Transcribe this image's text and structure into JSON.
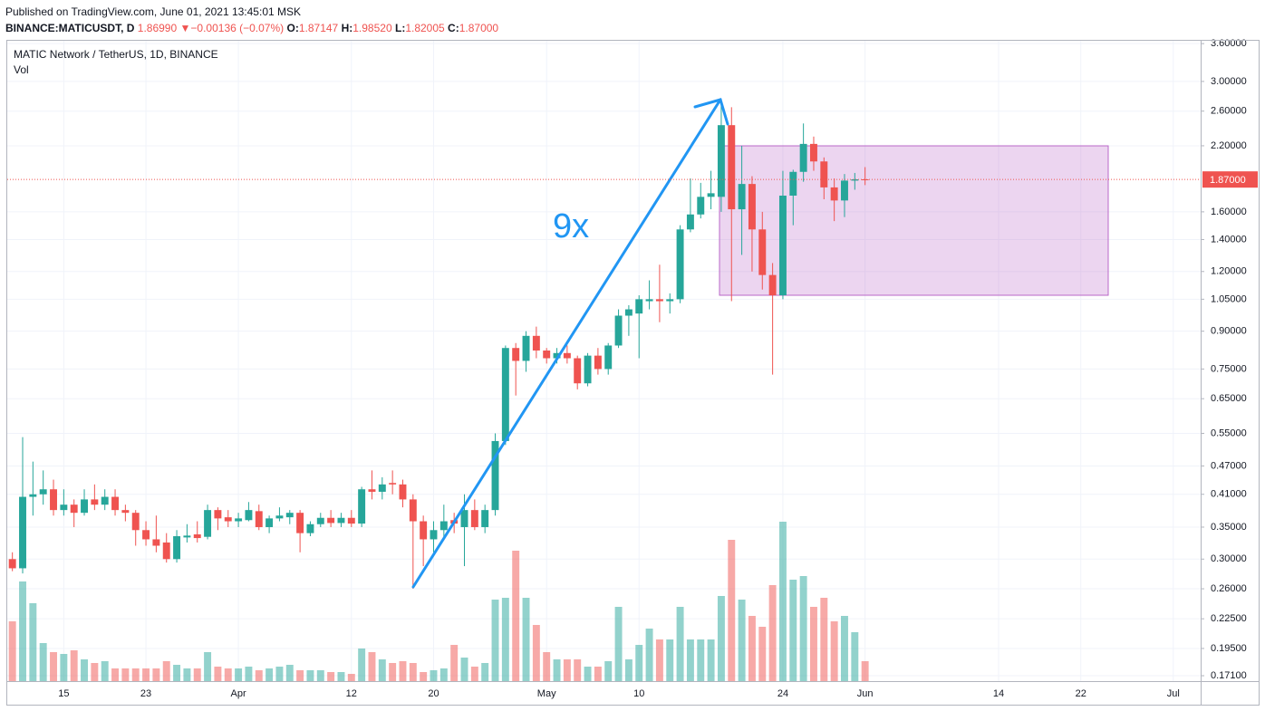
{
  "header": {
    "published": "Published on TradingView.com, June 01, 2021 13:45:01 MSK",
    "symbol": "BINANCE:MATICUSDT, D",
    "price": "1.86990",
    "arrow": "▼",
    "change": "−0.00136 (−0.07%)",
    "o_label": "O:",
    "o": "1.87147",
    "h_label": "H:",
    "h": "1.98520",
    "l_label": "L:",
    "l": "1.82005",
    "c_label": "C:",
    "c": "1.87000"
  },
  "chart_data": {
    "type": "candlestick",
    "title": "MATIC Network / TetherUS, 1D, BINANCE",
    "volume_label": "Vol",
    "annotation": "9x",
    "up_color": "#26a69a",
    "down_color": "#ef5350",
    "log_scale": true,
    "grid": true,
    "x": [
      "2021-03-10",
      "2021-03-11",
      "2021-03-12",
      "2021-03-13",
      "2021-03-14",
      "2021-03-15",
      "2021-03-16",
      "2021-03-17",
      "2021-03-18",
      "2021-03-19",
      "2021-03-20",
      "2021-03-21",
      "2021-03-22",
      "2021-03-23",
      "2021-03-24",
      "2021-03-25",
      "2021-03-26",
      "2021-03-27",
      "2021-03-28",
      "2021-03-29",
      "2021-03-30",
      "2021-03-31",
      "2021-04-01",
      "2021-04-02",
      "2021-04-03",
      "2021-04-04",
      "2021-04-05",
      "2021-04-06",
      "2021-04-07",
      "2021-04-08",
      "2021-04-09",
      "2021-04-10",
      "2021-04-11",
      "2021-04-12",
      "2021-04-13",
      "2021-04-14",
      "2021-04-15",
      "2021-04-16",
      "2021-04-17",
      "2021-04-18",
      "2021-04-19",
      "2021-04-20",
      "2021-04-21",
      "2021-04-22",
      "2021-04-23",
      "2021-04-24",
      "2021-04-25",
      "2021-04-26",
      "2021-04-27",
      "2021-04-28",
      "2021-04-29",
      "2021-04-30",
      "2021-05-01",
      "2021-05-02",
      "2021-05-03",
      "2021-05-04",
      "2021-05-05",
      "2021-05-06",
      "2021-05-07",
      "2021-05-08",
      "2021-05-09",
      "2021-05-10",
      "2021-05-11",
      "2021-05-12",
      "2021-05-13",
      "2021-05-14",
      "2021-05-15",
      "2021-05-16",
      "2021-05-17",
      "2021-05-18",
      "2021-05-19",
      "2021-05-20",
      "2021-05-21",
      "2021-05-22",
      "2021-05-23",
      "2021-05-24",
      "2021-05-25",
      "2021-05-26",
      "2021-05-27",
      "2021-05-28",
      "2021-05-29",
      "2021-05-30",
      "2021-05-31",
      "2021-06-01"
    ],
    "open": [
      0.3,
      0.287,
      0.405,
      0.41,
      0.42,
      0.38,
      0.39,
      0.375,
      0.4,
      0.39,
      0.405,
      0.38,
      0.375,
      0.345,
      0.33,
      0.325,
      0.3,
      0.333,
      0.338,
      0.334,
      0.38,
      0.367,
      0.36,
      0.362,
      0.378,
      0.35,
      0.365,
      0.367,
      0.375,
      0.34,
      0.355,
      0.366,
      0.357,
      0.366,
      0.356,
      0.42,
      0.415,
      0.433,
      0.43,
      0.4,
      0.36,
      0.33,
      0.345,
      0.362,
      0.35,
      0.38,
      0.35,
      0.38,
      0.53,
      0.83,
      0.78,
      0.88,
      0.82,
      0.79,
      0.81,
      0.79,
      0.7,
      0.8,
      0.75,
      0.84,
      0.97,
      0.98,
      1.04,
      1.05,
      1.04,
      1.05,
      1.47,
      1.58,
      1.72,
      1.72,
      2.43,
      1.62,
      1.83,
      1.47,
      1.18,
      1.07,
      1.73,
      1.94,
      2.22,
      2.04,
      1.8,
      1.69,
      1.86,
      1.87147
    ],
    "high": [
      0.31,
      0.54,
      0.48,
      0.46,
      0.44,
      0.42,
      0.4,
      0.42,
      0.43,
      0.42,
      0.42,
      0.39,
      0.38,
      0.36,
      0.37,
      0.34,
      0.345,
      0.355,
      0.36,
      0.39,
      0.385,
      0.38,
      0.375,
      0.395,
      0.39,
      0.37,
      0.385,
      0.38,
      0.38,
      0.36,
      0.375,
      0.38,
      0.375,
      0.38,
      0.425,
      0.46,
      0.445,
      0.46,
      0.44,
      0.41,
      0.37,
      0.36,
      0.39,
      0.375,
      0.41,
      0.4,
      0.39,
      0.55,
      0.84,
      0.85,
      0.9,
      0.92,
      0.83,
      0.83,
      0.84,
      0.8,
      0.81,
      0.83,
      0.85,
      1.0,
      1.02,
      1.07,
      1.15,
      1.24,
      1.08,
      1.5,
      1.88,
      1.84,
      1.95,
      2.7,
      2.65,
      2.2,
      1.9,
      1.6,
      1.25,
      1.95,
      1.96,
      2.45,
      2.3,
      2.08,
      1.88,
      1.92,
      1.93,
      1.9852
    ],
    "low": [
      0.283,
      0.28,
      0.37,
      0.39,
      0.37,
      0.37,
      0.35,
      0.37,
      0.38,
      0.38,
      0.37,
      0.36,
      0.32,
      0.32,
      0.31,
      0.295,
      0.295,
      0.325,
      0.325,
      0.33,
      0.345,
      0.35,
      0.35,
      0.36,
      0.345,
      0.34,
      0.36,
      0.355,
      0.31,
      0.335,
      0.35,
      0.35,
      0.35,
      0.35,
      0.35,
      0.4,
      0.4,
      0.41,
      0.385,
      0.26,
      0.29,
      0.31,
      0.33,
      0.34,
      0.29,
      0.345,
      0.34,
      0.37,
      0.52,
      0.66,
      0.74,
      0.79,
      0.77,
      0.77,
      0.77,
      0.68,
      0.69,
      0.73,
      0.73,
      0.83,
      0.88,
      0.79,
      1.0,
      0.94,
      0.98,
      1.03,
      1.45,
      1.55,
      1.62,
      1.6,
      1.04,
      1.3,
      1.2,
      1.1,
      0.73,
      1.05,
      1.5,
      1.85,
      1.95,
      1.7,
      1.53,
      1.56,
      1.78,
      1.82005
    ],
    "close": [
      0.287,
      0.405,
      0.41,
      0.42,
      0.38,
      0.39,
      0.375,
      0.4,
      0.39,
      0.405,
      0.38,
      0.375,
      0.345,
      0.33,
      0.32,
      0.3,
      0.335,
      0.336,
      0.332,
      0.38,
      0.365,
      0.36,
      0.365,
      0.38,
      0.35,
      0.365,
      0.37,
      0.375,
      0.34,
      0.355,
      0.366,
      0.357,
      0.366,
      0.356,
      0.42,
      0.415,
      0.43,
      0.43,
      0.4,
      0.36,
      0.33,
      0.345,
      0.36,
      0.356,
      0.38,
      0.35,
      0.38,
      0.53,
      0.83,
      0.78,
      0.88,
      0.82,
      0.79,
      0.81,
      0.79,
      0.7,
      0.8,
      0.75,
      0.84,
      0.97,
      1.0,
      1.05,
      1.05,
      1.04,
      1.05,
      1.47,
      1.58,
      1.72,
      1.75,
      2.43,
      1.62,
      1.83,
      1.47,
      1.18,
      1.07,
      1.73,
      1.94,
      2.22,
      2.04,
      1.8,
      1.69,
      1.86,
      1.8714,
      1.87
    ],
    "volume": [
      33,
      55,
      43,
      21,
      16,
      15,
      17,
      12,
      10,
      11,
      7,
      7,
      7,
      7,
      7,
      11,
      9,
      7,
      7,
      16,
      8,
      7,
      7,
      8,
      6,
      7,
      8,
      9,
      6,
      6,
      6,
      5,
      5,
      4,
      18,
      16,
      12,
      10,
      11,
      10,
      5,
      6,
      7,
      20,
      13,
      8,
      10,
      45,
      46,
      72,
      46,
      31,
      16,
      12,
      12,
      12,
      8,
      8,
      11,
      41,
      12,
      20,
      29,
      23,
      23,
      41,
      23,
      23,
      23,
      47,
      78,
      45,
      36,
      30,
      53,
      88,
      56,
      58,
      41,
      46,
      33,
      36,
      27,
      11
    ],
    "volume_lim": [
      0,
      100
    ],
    "xlim": [
      "2021-03-09T12:00Z",
      "2021-07-03T16:00Z"
    ],
    "xticks": [
      {
        "value": "2021-03-15",
        "label": "15"
      },
      {
        "value": "2021-03-23",
        "label": "23"
      },
      {
        "value": "2021-04-01",
        "label": "Apr"
      },
      {
        "value": "2021-04-12",
        "label": "12"
      },
      {
        "value": "2021-04-20",
        "label": "20"
      },
      {
        "value": "2021-05-01",
        "label": "May"
      },
      {
        "value": "2021-05-10",
        "label": "10"
      },
      {
        "value": "2021-05-24",
        "label": "24"
      },
      {
        "value": "2021-06-01",
        "label": "Jun"
      },
      {
        "value": "2021-06-14",
        "label": "14"
      },
      {
        "value": "2021-06-22",
        "label": "22"
      },
      {
        "value": "2021-07-01",
        "label": "Jul"
      }
    ],
    "ylim": [
      0.1666,
      3.65
    ],
    "yticks": [
      {
        "value": 3.6,
        "label": "3.60000"
      },
      {
        "value": 3.0,
        "label": "3.00000"
      },
      {
        "value": 2.6,
        "label": "2.60000"
      },
      {
        "value": 2.2,
        "label": "2.20000"
      },
      {
        "value": 1.6,
        "label": "1.60000"
      },
      {
        "value": 1.4,
        "label": "1.40000"
      },
      {
        "value": 1.2,
        "label": "1.20000"
      },
      {
        "value": 1.05,
        "label": "1.05000"
      },
      {
        "value": 0.9,
        "label": "0.90000"
      },
      {
        "value": 0.75,
        "label": "0.75000"
      },
      {
        "value": 0.65,
        "label": "0.65000"
      },
      {
        "value": 0.55,
        "label": "0.55000"
      },
      {
        "value": 0.47,
        "label": "0.47000"
      },
      {
        "value": 0.41,
        "label": "0.41000"
      },
      {
        "value": 0.35,
        "label": "0.35000"
      },
      {
        "value": 0.3,
        "label": "0.30000"
      },
      {
        "value": 0.26,
        "label": "0.26000"
      },
      {
        "value": 0.225,
        "label": "0.22500"
      },
      {
        "value": 0.195,
        "label": "0.19500"
      },
      {
        "value": 0.171,
        "label": "0.17100"
      }
    ],
    "last_price": {
      "value": 1.87,
      "label": "1.87000"
    }
  }
}
